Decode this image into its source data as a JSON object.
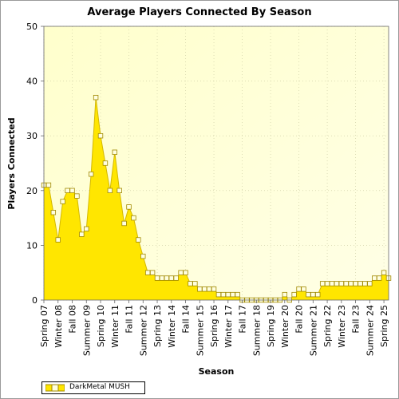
{
  "chart_data": {
    "type": "area",
    "title": "Average Players Connected By Season",
    "xlabel": "Season",
    "ylabel": "Players Connected",
    "ylim": [
      0,
      50
    ],
    "yticks": [
      0,
      10,
      20,
      30,
      40,
      50
    ],
    "x_tick_labels": [
      "Spring 07",
      "Winter 08",
      "Fall 08",
      "Summer 09",
      "Spring 10",
      "Winter 11",
      "Fall 11",
      "Summer 12",
      "Spring 13",
      "Winter 14",
      "Fall 14",
      "Summer 15",
      "Spring 16",
      "Winter 17",
      "Fall 17",
      "Summer 18",
      "Spring 19",
      "Winter 20",
      "Fall 20",
      "Summer 21",
      "Spring 22",
      "Winter 23",
      "Fall 23",
      "Summer 24",
      "Spring 25"
    ],
    "grid": true,
    "legend_position": "bottom-left",
    "colors": {
      "fill": "#FFE600",
      "line": "#D4B800",
      "marker_fill": "#FFFFE0",
      "marker_stroke": "#A08800",
      "plot_bg": "#FFFFE6"
    },
    "series": [
      {
        "name": "DarkMetal MUSH",
        "values": [
          21,
          21,
          16,
          11,
          18,
          20,
          20,
          19,
          12,
          13,
          23,
          37,
          30,
          25,
          20,
          27,
          20,
          14,
          17,
          15,
          11,
          8,
          5,
          5,
          4,
          4,
          4,
          4,
          4,
          5,
          5,
          3,
          3,
          2,
          2,
          2,
          2,
          1,
          1,
          1,
          1,
          1,
          0,
          0,
          0,
          0,
          0,
          0,
          0,
          0,
          0,
          1,
          0,
          1,
          2,
          2,
          1,
          1,
          1,
          3,
          3,
          3,
          3,
          3,
          3,
          3,
          3,
          3,
          3,
          3,
          4,
          4,
          5,
          4
        ]
      }
    ]
  }
}
